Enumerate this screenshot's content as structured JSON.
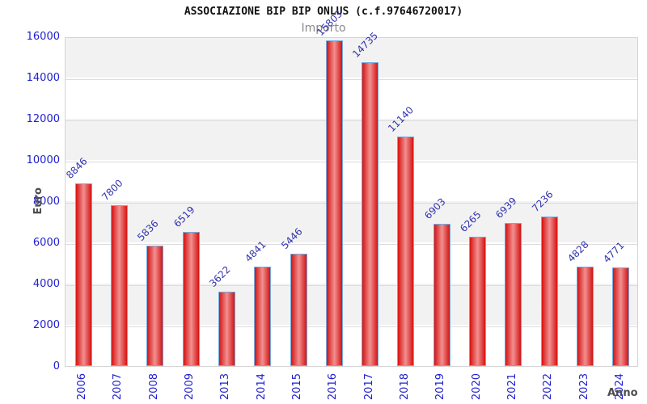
{
  "header": {
    "title": "ASSOCIAZIONE BIP BIP ONLUS (c.f.97646720017)",
    "subtitle": "Importo"
  },
  "chart_data": {
    "type": "bar",
    "title": "ASSOCIAZIONE BIP BIP ONLUS (c.f.97646720017)",
    "subtitle": "Importo",
    "xlabel": "Anno",
    "ylabel": "Euro",
    "categories": [
      "2006",
      "2007",
      "2008",
      "2009",
      "2013",
      "2014",
      "2015",
      "2016",
      "2017",
      "2018",
      "2019",
      "2020",
      "2021",
      "2022",
      "2023",
      "2024"
    ],
    "values": [
      8846,
      7800,
      5836,
      6519,
      3622,
      4841,
      5446,
      15803,
      14735,
      11140,
      6903,
      6265,
      6939,
      7236,
      4828,
      4771
    ],
    "ylim": [
      0,
      16000
    ],
    "y_ticks": [
      0,
      2000,
      4000,
      6000,
      8000,
      10000,
      12000,
      14000,
      16000
    ],
    "grid": "horizontal",
    "background_bands": "alternating white/gray every 2000",
    "legend": "none",
    "colors": {
      "bar_edge": "#d31414",
      "bar_center": "#f29090",
      "bar_border": "#74aadc",
      "tick_text": "#2020d0",
      "value_label_text": "#3434ad",
      "axis_title_text": "#4d4d4d",
      "subtitle_text": "#8a8a8a",
      "title_text": "#111111",
      "band_gray": "#f2f2f2",
      "band_white": "#ffffff",
      "gridline": "#dcdcdc",
      "plot_border": "#d4d4d4"
    }
  }
}
